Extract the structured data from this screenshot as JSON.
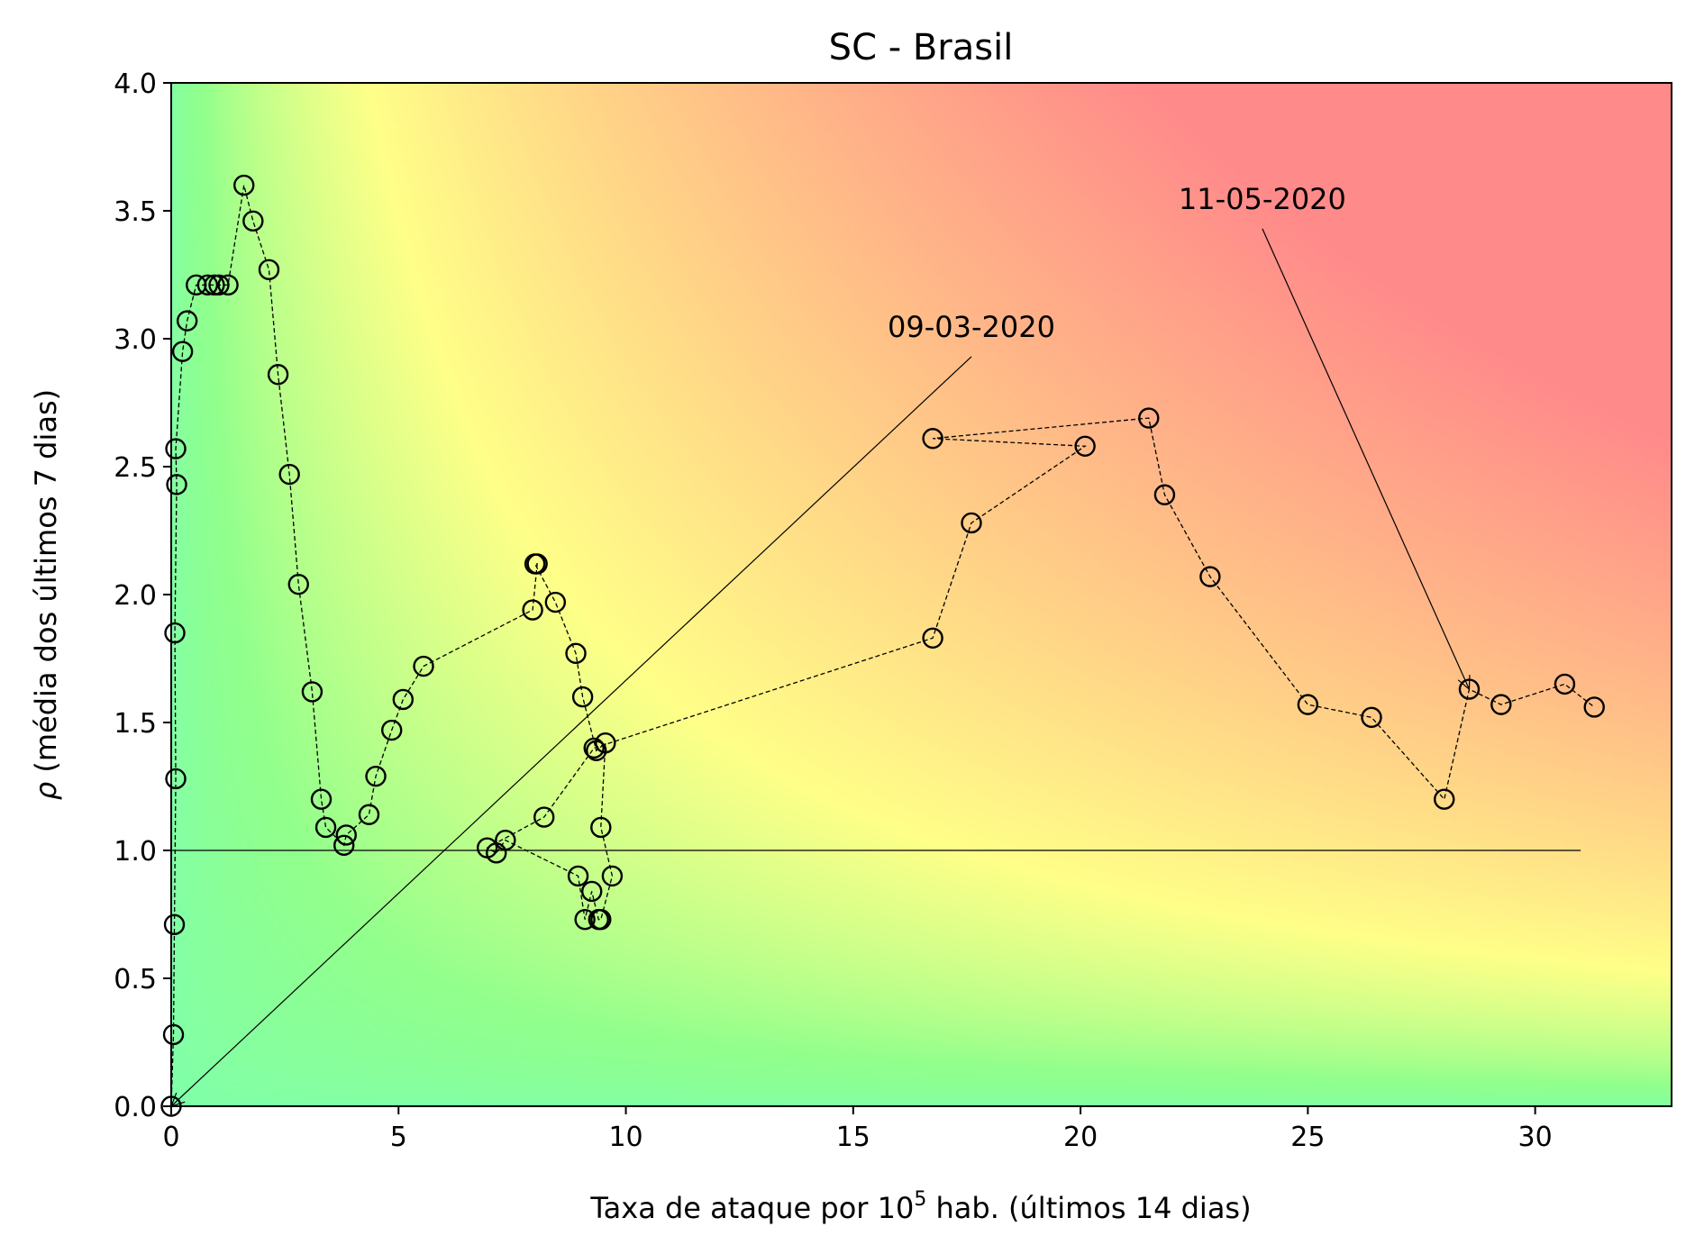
{
  "chart_data": {
    "type": "scatter",
    "title": "SC - Brasil",
    "xlabel": {
      "prefix": "Taxa de ataque por 10",
      "sup": "5",
      "suffix": " hab. (últimos 14 dias)"
    },
    "ylabel": {
      "symbol": "ρ",
      "rest": " (média dos últimos 7 dias)"
    },
    "xlim": [
      0,
      33
    ],
    "ylim": [
      0,
      4.0
    ],
    "xticks": [
      0,
      5,
      10,
      15,
      20,
      25,
      30
    ],
    "xtick_labels": [
      "0",
      "5",
      "10",
      "15",
      "20",
      "25",
      "30"
    ],
    "yticks": [
      0,
      0.5,
      1.0,
      1.5,
      2.0,
      2.5,
      3.0,
      3.5,
      4.0
    ],
    "ytick_labels": [
      "0.0",
      "0.5",
      "1.0",
      "1.5",
      "2.0",
      "2.5",
      "3.0",
      "3.5",
      "4.0"
    ],
    "grid": false,
    "background": "risk gradient: green (low attack rate, low ρ) → yellow → red (high attack rate, high ρ)",
    "colors": {
      "low": "#80ff9a",
      "mid": "#ffff88",
      "high": "#ff8a8a",
      "marker": "#000000"
    },
    "reference_line": {
      "y": 1.0,
      "x_start": 0,
      "x_end": 31
    },
    "series": [
      {
        "marker": "open-circle",
        "line": "dashed",
        "x": [
          0.0,
          0.05,
          0.07,
          0.1,
          0.08,
          0.12,
          0.1,
          0.25,
          0.35,
          0.55,
          0.8,
          0.95,
          1.05,
          1.25,
          1.6,
          1.8,
          2.15,
          2.35,
          2.6,
          2.8,
          3.1,
          3.3,
          3.4,
          3.8,
          3.85,
          4.35,
          4.5,
          4.85,
          5.1,
          5.55,
          7.95,
          8.05,
          8.0,
          8.45,
          8.9,
          9.05,
          9.35,
          9.55,
          9.45,
          9.7,
          9.45,
          9.4,
          9.25,
          9.1,
          8.95,
          7.35,
          7.15,
          6.95,
          8.2,
          9.3,
          16.75,
          17.6,
          20.1,
          16.75,
          21.5,
          21.85,
          22.85,
          25.0,
          26.4,
          28.0,
          28.55,
          29.25,
          30.65,
          31.3
        ],
        "y": [
          0.0,
          0.28,
          0.71,
          1.28,
          1.85,
          2.43,
          2.57,
          2.95,
          3.07,
          3.21,
          3.21,
          3.21,
          3.21,
          3.21,
          3.6,
          3.46,
          3.27,
          2.86,
          2.47,
          2.04,
          1.62,
          1.2,
          1.09,
          1.02,
          1.06,
          1.14,
          1.29,
          1.47,
          1.59,
          1.72,
          1.94,
          2.12,
          2.12,
          1.97,
          1.77,
          1.6,
          1.39,
          1.42,
          1.09,
          0.9,
          0.73,
          0.73,
          0.84,
          0.73,
          0.9,
          1.04,
          0.99,
          1.01,
          1.13,
          1.4,
          1.83,
          2.28,
          2.58,
          2.61,
          2.69,
          2.39,
          2.07,
          1.57,
          1.52,
          1.2,
          1.63,
          1.57,
          1.65,
          1.56
        ]
      }
    ],
    "annotations": [
      {
        "text": "09-03-2020",
        "point": [
          0,
          0
        ],
        "text_xy": [
          17.6,
          2.93
        ]
      },
      {
        "text": "11-05-2020",
        "point": [
          28.55,
          1.63
        ],
        "text_xy": [
          24.0,
          3.43
        ]
      }
    ]
  }
}
